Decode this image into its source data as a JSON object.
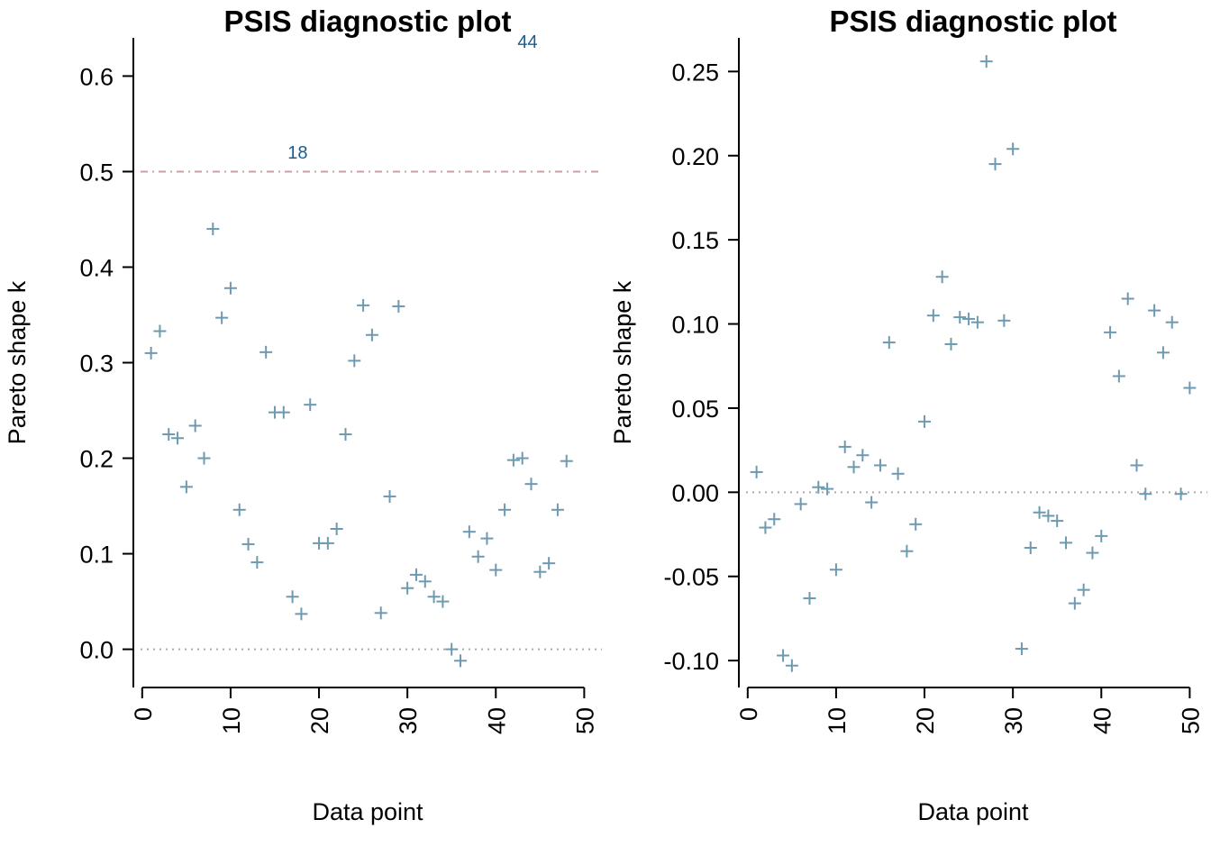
{
  "chart_data": [
    {
      "type": "scatter",
      "title": "PSIS diagnostic plot",
      "xlabel": "Data point",
      "ylabel": "Pareto shape k",
      "xlim": [
        -1,
        52
      ],
      "ylim": [
        -0.04,
        0.64
      ],
      "xticks": [
        0,
        10,
        20,
        30,
        40,
        50
      ],
      "xtick_labels": [
        "0",
        "10",
        "20",
        "30",
        "40",
        "50"
      ],
      "yticks": [
        0.0,
        0.1,
        0.2,
        0.3,
        0.4,
        0.5,
        0.6
      ],
      "ytick_labels": [
        "0.0",
        "0.1",
        "0.2",
        "0.3",
        "0.4",
        "0.5",
        "0.6"
      ],
      "grid": false,
      "hlines": [
        {
          "y": 0.0,
          "style": "dotted",
          "color": "#aaaaaa"
        },
        {
          "y": 0.5,
          "style": "dashdot",
          "color": "#c9a0a0"
        }
      ],
      "point_color": "#6e9ab0",
      "point_marker": "+",
      "points": [
        {
          "x": 1,
          "y": 0.31
        },
        {
          "x": 2,
          "y": 0.333
        },
        {
          "x": 3,
          "y": 0.225
        },
        {
          "x": 4,
          "y": 0.221
        },
        {
          "x": 5,
          "y": 0.17
        },
        {
          "x": 6,
          "y": 0.234
        },
        {
          "x": 7,
          "y": 0.2
        },
        {
          "x": 8,
          "y": 0.44
        },
        {
          "x": 9,
          "y": 0.347
        },
        {
          "x": 10,
          "y": 0.378
        },
        {
          "x": 11,
          "y": 0.146
        },
        {
          "x": 12,
          "y": 0.11
        },
        {
          "x": 13,
          "y": 0.091
        },
        {
          "x": 14,
          "y": 0.311
        },
        {
          "x": 15,
          "y": 0.248
        },
        {
          "x": 16,
          "y": 0.248
        },
        {
          "x": 17,
          "y": 0.055
        },
        {
          "x": 18,
          "y": 0.037
        },
        {
          "x": 19,
          "y": 0.256
        },
        {
          "x": 20,
          "y": 0.111
        },
        {
          "x": 21,
          "y": 0.111
        },
        {
          "x": 22,
          "y": 0.126
        },
        {
          "x": 23,
          "y": 0.225
        },
        {
          "x": 24,
          "y": 0.302
        },
        {
          "x": 25,
          "y": 0.36
        },
        {
          "x": 26,
          "y": 0.329
        },
        {
          "x": 27,
          "y": 0.038
        },
        {
          "x": 28,
          "y": 0.16
        },
        {
          "x": 29,
          "y": 0.359
        },
        {
          "x": 30,
          "y": 0.064
        },
        {
          "x": 31,
          "y": 0.078
        },
        {
          "x": 32,
          "y": 0.071
        },
        {
          "x": 33,
          "y": 0.055
        },
        {
          "x": 34,
          "y": 0.05
        },
        {
          "x": 35,
          "y": 0.0
        },
        {
          "x": 36,
          "y": -0.012
        },
        {
          "x": 37,
          "y": 0.123
        },
        {
          "x": 38,
          "y": 0.097
        },
        {
          "x": 39,
          "y": 0.116
        },
        {
          "x": 40,
          "y": 0.083
        },
        {
          "x": 41,
          "y": 0.146
        },
        {
          "x": 42,
          "y": 0.198
        },
        {
          "x": 43,
          "y": 0.2
        },
        {
          "x": 44,
          "y": 0.173
        },
        {
          "x": 45,
          "y": 0.081
        },
        {
          "x": 46,
          "y": 0.09
        },
        {
          "x": 47,
          "y": 0.146
        },
        {
          "x": 48,
          "y": 0.197
        }
      ],
      "annotations": [
        {
          "label": "18",
          "x": 18,
          "y": 0.52,
          "color": "#1b5e8e"
        },
        {
          "label": "44",
          "x": 44,
          "y": 0.636,
          "color": "#1b5e8e"
        }
      ]
    },
    {
      "type": "scatter",
      "title": "PSIS diagnostic plot",
      "xlabel": "Data point",
      "ylabel": "Pareto shape k",
      "xlim": [
        -1,
        52
      ],
      "ylim": [
        -0.116,
        0.27
      ],
      "xticks": [
        0,
        10,
        20,
        30,
        40,
        50
      ],
      "xtick_labels": [
        "0",
        "10",
        "20",
        "30",
        "40",
        "50"
      ],
      "yticks": [
        -0.1,
        -0.05,
        0.0,
        0.05,
        0.1,
        0.15,
        0.2,
        0.25
      ],
      "ytick_labels": [
        "-0.10",
        "-0.05",
        "0.00",
        "0.05",
        "0.10",
        "0.15",
        "0.20",
        "0.25"
      ],
      "grid": false,
      "hlines": [
        {
          "y": 0.0,
          "style": "dotted",
          "color": "#aaaaaa"
        }
      ],
      "point_color": "#6e9ab0",
      "point_marker": "+",
      "points": [
        {
          "x": 1,
          "y": 0.012
        },
        {
          "x": 2,
          "y": -0.021
        },
        {
          "x": 3,
          "y": -0.016
        },
        {
          "x": 4,
          "y": -0.097
        },
        {
          "x": 5,
          "y": -0.103
        },
        {
          "x": 6,
          "y": -0.007
        },
        {
          "x": 7,
          "y": -0.063
        },
        {
          "x": 8,
          "y": 0.003
        },
        {
          "x": 9,
          "y": 0.002
        },
        {
          "x": 10,
          "y": -0.046
        },
        {
          "x": 11,
          "y": 0.027
        },
        {
          "x": 12,
          "y": 0.015
        },
        {
          "x": 13,
          "y": 0.022
        },
        {
          "x": 14,
          "y": -0.006
        },
        {
          "x": 15,
          "y": 0.016
        },
        {
          "x": 16,
          "y": 0.089
        },
        {
          "x": 17,
          "y": 0.011
        },
        {
          "x": 18,
          "y": -0.035
        },
        {
          "x": 19,
          "y": -0.019
        },
        {
          "x": 20,
          "y": 0.042
        },
        {
          "x": 21,
          "y": 0.105
        },
        {
          "x": 22,
          "y": 0.128
        },
        {
          "x": 23,
          "y": 0.088
        },
        {
          "x": 24,
          "y": 0.104
        },
        {
          "x": 25,
          "y": 0.103
        },
        {
          "x": 26,
          "y": 0.101
        },
        {
          "x": 27,
          "y": 0.256
        },
        {
          "x": 28,
          "y": 0.195
        },
        {
          "x": 29,
          "y": 0.102
        },
        {
          "x": 30,
          "y": 0.204
        },
        {
          "x": 31,
          "y": -0.093
        },
        {
          "x": 32,
          "y": -0.033
        },
        {
          "x": 33,
          "y": -0.012
        },
        {
          "x": 34,
          "y": -0.014
        },
        {
          "x": 35,
          "y": -0.017
        },
        {
          "x": 36,
          "y": -0.03
        },
        {
          "x": 37,
          "y": -0.066
        },
        {
          "x": 38,
          "y": -0.058
        },
        {
          "x": 39,
          "y": -0.036
        },
        {
          "x": 40,
          "y": -0.026
        },
        {
          "x": 41,
          "y": 0.095
        },
        {
          "x": 42,
          "y": 0.069
        },
        {
          "x": 43,
          "y": 0.115
        },
        {
          "x": 44,
          "y": 0.016
        },
        {
          "x": 45,
          "y": -0.001
        },
        {
          "x": 46,
          "y": 0.108
        },
        {
          "x": 47,
          "y": 0.083
        },
        {
          "x": 48,
          "y": 0.101
        },
        {
          "x": 49,
          "y": -0.001
        },
        {
          "x": 50,
          "y": 0.062
        }
      ],
      "annotations": []
    }
  ]
}
